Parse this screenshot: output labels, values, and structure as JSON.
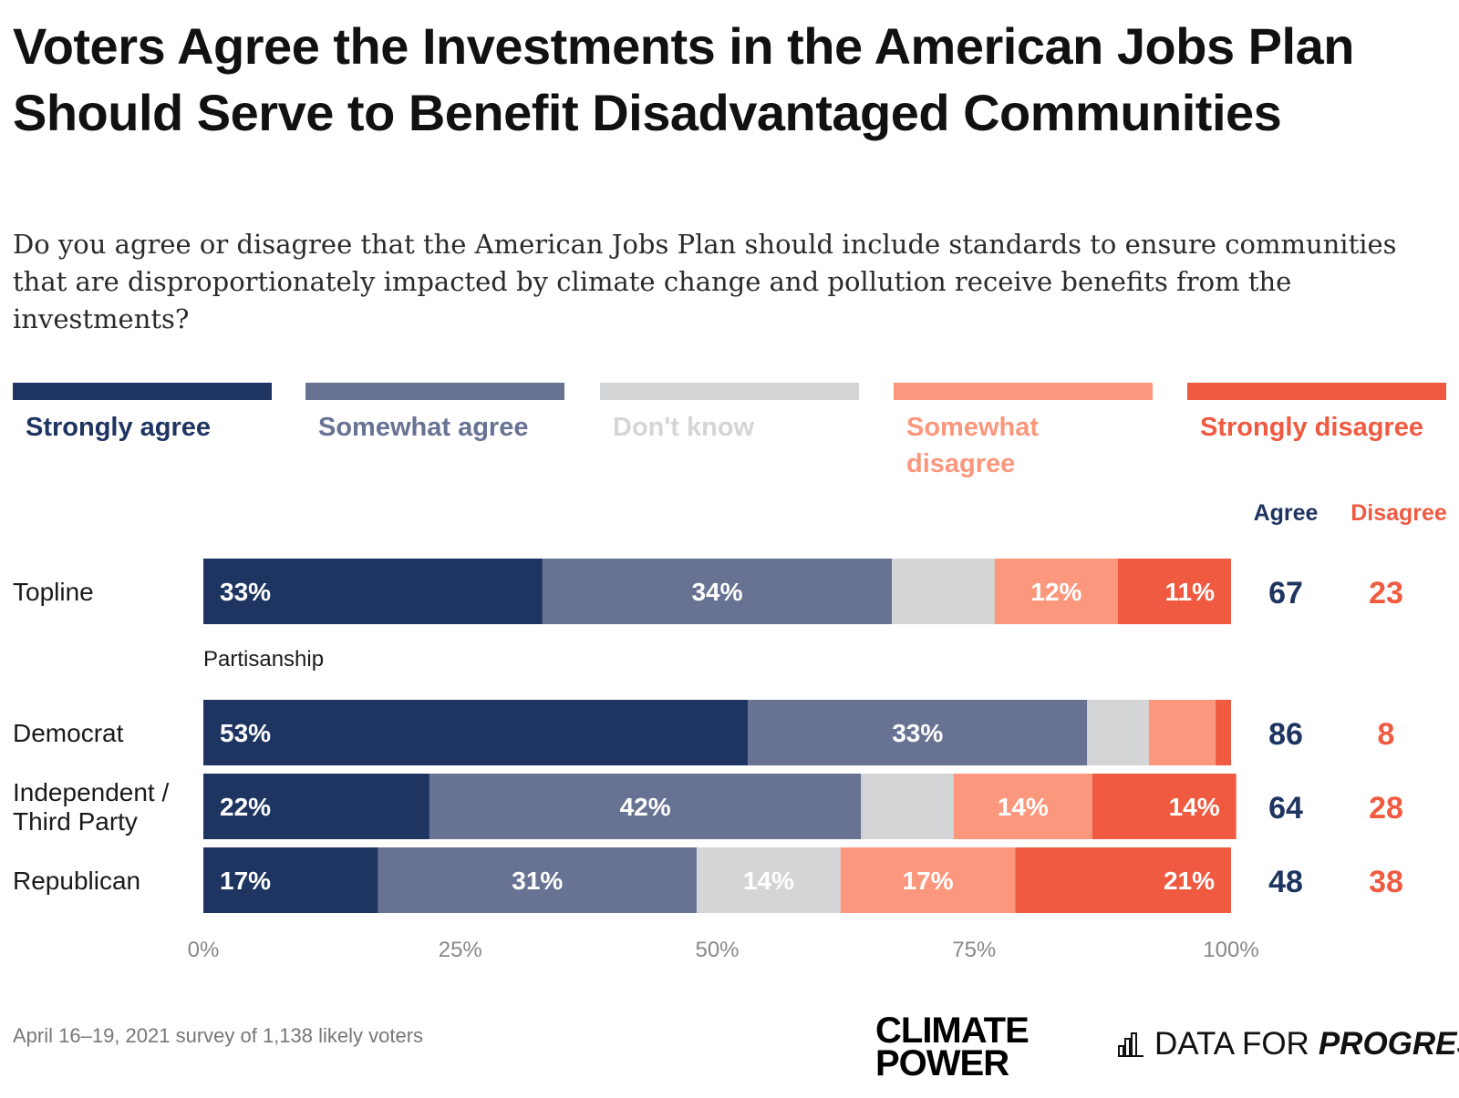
{
  "title": "Voters Agree the Investments in the American Jobs Plan Should Serve to Benefit Disadvantaged Communities",
  "subtitle": "Do you agree or disagree that the American Jobs Plan should include standards to ensure communities that are disproportionately impacted by climate change and pollution receive benefits from the investments?",
  "colors": {
    "strongly_agree": "#1e3461",
    "somewhat_agree": "#687293",
    "dont_know": "#d4d5d7",
    "somewhat_disagree": "#fb977c",
    "strongly_disagree": "#ef5a40",
    "axis_text": "#888888"
  },
  "legend": [
    {
      "label": "Strongly agree",
      "color": "#1e3461",
      "text_color": "#1e3461"
    },
    {
      "label": "Somewhat agree",
      "color": "#687293",
      "text_color": "#687293"
    },
    {
      "label": "Don't know",
      "color": "#d4d5d7",
      "text_color": "#d4d5d7"
    },
    {
      "label": "Somewhat disagree",
      "color": "#fb977c",
      "text_color": "#fb977c"
    },
    {
      "label": "Strongly disagree",
      "color": "#ef5a40",
      "text_color": "#ef5a40"
    }
  ],
  "chart_data": {
    "type": "bar",
    "orientation": "horizontal-stacked",
    "series_names": [
      "Strongly agree",
      "Somewhat agree",
      "Don't know",
      "Somewhat disagree",
      "Strongly disagree"
    ],
    "categories": [
      "Topline",
      "Democrat",
      "Independent / Third Party",
      "Republican"
    ],
    "rows": [
      {
        "label": "Topline",
        "values": [
          33,
          34,
          10,
          12,
          11
        ],
        "labels": [
          "33%",
          "34%",
          "",
          "12%",
          "11%"
        ],
        "agree": "67",
        "disagree": "23"
      },
      {
        "label": "Democrat",
        "values": [
          53,
          33,
          6,
          6.5,
          1.5
        ],
        "labels": [
          "53%",
          "33%",
          "",
          "",
          ""
        ],
        "agree": "86",
        "disagree": "8"
      },
      {
        "label": "Independent / Third Party",
        "values": [
          22,
          42,
          9,
          13.5,
          14
        ],
        "labels": [
          "22%",
          "42%",
          "",
          "14%",
          "14%"
        ],
        "agree": "64",
        "disagree": "28"
      },
      {
        "label": "Republican",
        "values": [
          17,
          31,
          14,
          17,
          21
        ],
        "labels": [
          "17%",
          "31%",
          "14%",
          "17%",
          "21%"
        ],
        "agree": "48",
        "disagree": "38"
      }
    ],
    "group_label": "Partisanship",
    "summary_headers": {
      "agree": "Agree",
      "disagree": "Disagree"
    },
    "x_ticks": [
      "0%",
      "25%",
      "50%",
      "75%",
      "100%"
    ],
    "xlim": [
      0,
      100
    ]
  },
  "footnote": "April 16–19, 2021 survey of 1,138 likely voters",
  "logos": {
    "climate_power_line1": "CLIMATE",
    "climate_power_line2": "POWER",
    "dfp_text": "DATA FOR",
    "dfp_emphasis": "PROGRESS"
  }
}
